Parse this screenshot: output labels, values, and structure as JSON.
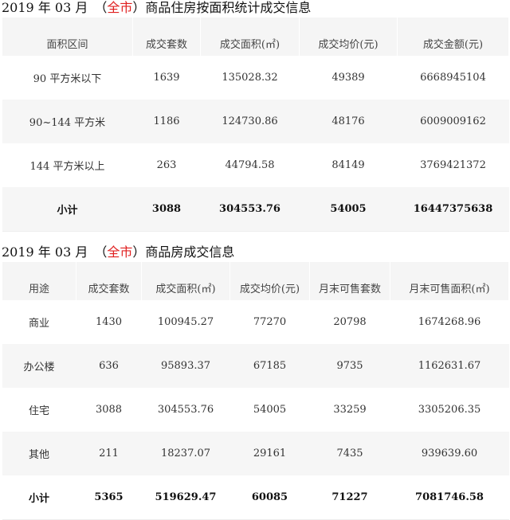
{
  "table1": {
    "title_prefix": "2019 年 03 月　（",
    "title_region": "全市",
    "title_suffix": "）商品住房按面积统计成交信息",
    "headers": [
      "面积区间",
      "成交套数",
      "成交面积(㎡)",
      "成交均价(元)",
      "成交金额(元)"
    ],
    "rows": [
      [
        "90 平方米以下",
        "1639",
        "135028.32",
        "49389",
        "6668945104"
      ],
      [
        "90~144 平方米",
        "1186",
        "124730.86",
        "48176",
        "6009009162"
      ],
      [
        "144 平方米以上",
        "263",
        "44794.58",
        "84149",
        "3769421372"
      ],
      [
        "小计",
        "3088",
        "304553.76",
        "54005",
        "16447375638"
      ]
    ]
  },
  "table2": {
    "title_prefix": "2019 年 03 月　（",
    "title_region": "全市",
    "title_suffix": "）商品房成交信息",
    "headers": [
      "用途",
      "成交套数",
      "成交面积(㎡)",
      "成交均价(元)",
      "月末可售套数",
      "月末可售面积(㎡)"
    ],
    "rows": [
      [
        "商业",
        "1430",
        "100945.27",
        "77270",
        "20798",
        "1674268.96"
      ],
      [
        "办公楼",
        "636",
        "95893.37",
        "67185",
        "9735",
        "1162631.67"
      ],
      [
        "住宅",
        "3088",
        "304553.76",
        "54005",
        "33259",
        "3305206.35"
      ],
      [
        "其他",
        "211",
        "18237.07",
        "29161",
        "7435",
        "939639.60"
      ],
      [
        "小计",
        "5365",
        "519629.47",
        "60085",
        "71227",
        "7081746.58"
      ]
    ]
  },
  "colors": {
    "accent_red": "#e02020",
    "row_alt": "#f6f6f6"
  }
}
